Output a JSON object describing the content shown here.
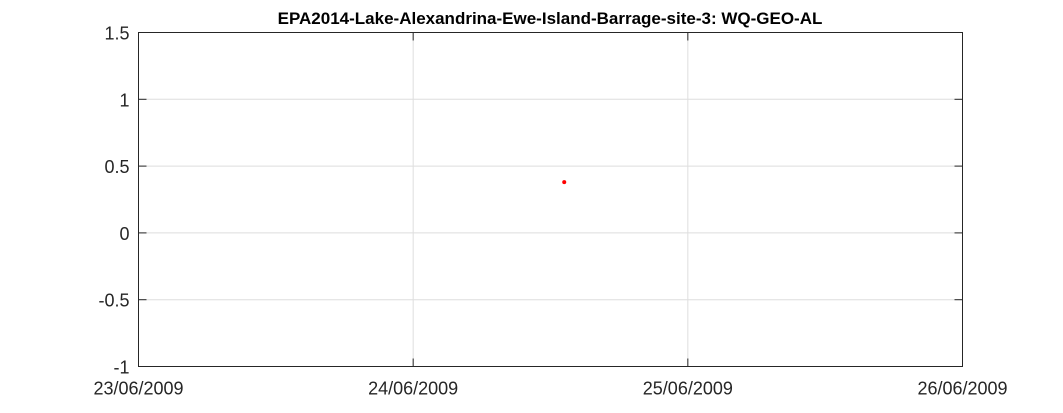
{
  "chart_data": {
    "type": "scatter",
    "title": "EPA2014-Lake-Alexandrina-Ewe-Island-Barrage-site-3: WQ-GEO-AL",
    "xlabel": "",
    "ylabel": "",
    "x_tick_labels": [
      "23/06/2009",
      "24/06/2009",
      "25/06/2009",
      "26/06/2009"
    ],
    "xlim": [
      0,
      3
    ],
    "y_tick_labels": [
      "1.5",
      "1",
      "0.5",
      "0",
      "-0.5",
      "-1"
    ],
    "y_ticks": [
      1.5,
      1,
      0.5,
      0,
      -0.5,
      -1
    ],
    "ylim": [
      -1,
      1.5
    ],
    "grid": true,
    "series": [
      {
        "name": "WQ-GEO-AL",
        "color": "#ff0000",
        "marker": "point",
        "points": [
          {
            "x": 1.55,
            "y": 0.38
          }
        ]
      }
    ]
  }
}
